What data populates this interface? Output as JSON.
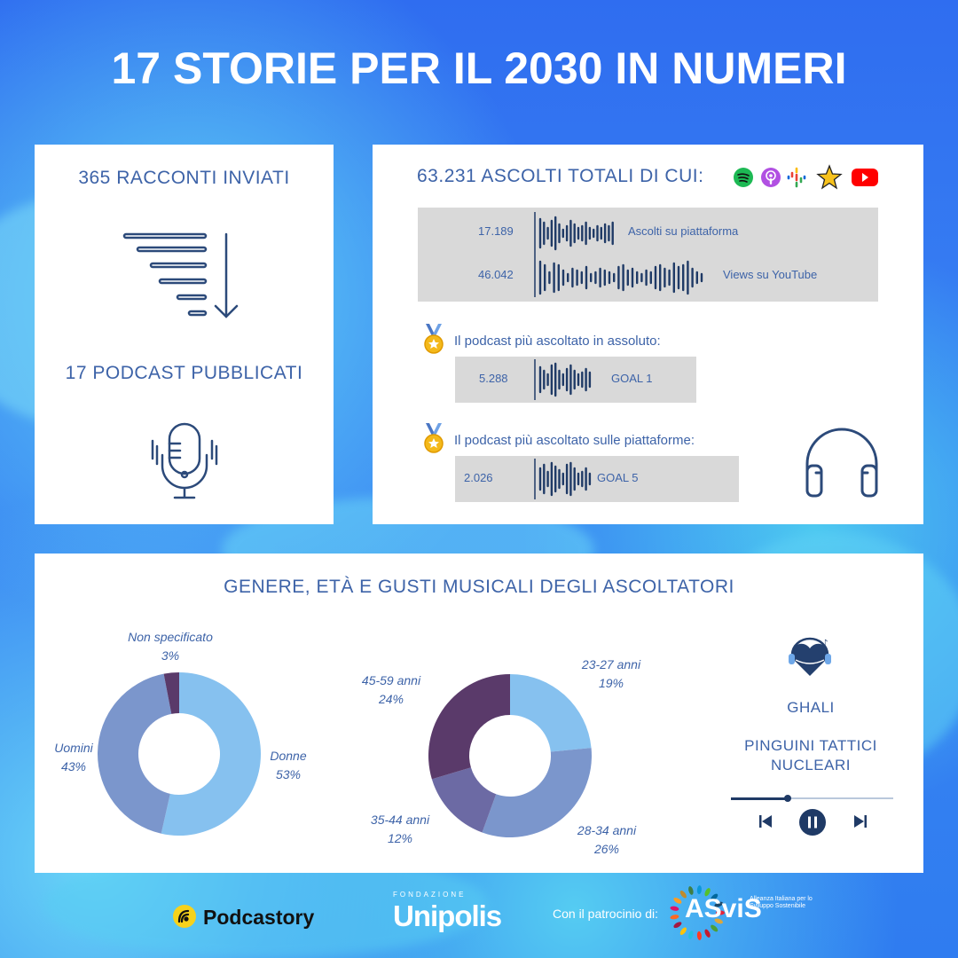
{
  "title": "17 STORIE PER IL 2030 IN NUMERI",
  "left_card": {
    "stories_sent": "365 RACCONTI INVIATI",
    "podcasts_published": "17 PODCAST PUBBLICATI"
  },
  "right_card": {
    "total_heading": "63.231 ASCOLTI TOTALI DI CUI:",
    "platforms": [
      "spotify-icon",
      "apple-podcasts-icon",
      "google-podcasts-icon",
      "star-platform-icon",
      "youtube-icon"
    ],
    "platform": {
      "value": "17.189",
      "label": "Ascolti su piattaforma"
    },
    "youtube": {
      "value": "46.042",
      "label": "Views su YouTube"
    },
    "top_overall": {
      "label": "Il podcast più ascoltato in assoluto:",
      "value": "5.288",
      "goal": "GOAL 1"
    },
    "top_platforms": {
      "label": "Il podcast più ascoltato sulle piattaforme:",
      "value": "2.026",
      "goal": "GOAL 5"
    }
  },
  "audience": {
    "heading": "GENERE, ETÀ E GUSTI MUSICALI DEGLI ASCOLTATORI"
  },
  "chart_data": [
    {
      "type": "pie",
      "categories": [
        "Donne",
        "Uomini",
        "Non specificato"
      ],
      "values": [
        53,
        43,
        3
      ],
      "colors": [
        "#86c1ef",
        "#7b96cc",
        "#5a3a6a"
      ],
      "labels": [
        {
          "name": "Donne",
          "pct": "53%"
        },
        {
          "name": "Uomini",
          "pct": "43%"
        },
        {
          "name": "Non specificato",
          "pct": "3%"
        }
      ]
    },
    {
      "type": "pie",
      "categories": [
        "23-27 anni",
        "28-34 anni",
        "35-44 anni",
        "45-59 anni"
      ],
      "values": [
        19,
        26,
        12,
        24
      ],
      "colors": [
        "#86c1ef",
        "#7b96cc",
        "#6c6aa4",
        "#5a3a6a"
      ],
      "labels": [
        {
          "name": "23-27 anni",
          "pct": "19%"
        },
        {
          "name": "28-34 anni",
          "pct": "26%"
        },
        {
          "name": "35-44 anni",
          "pct": "12%"
        },
        {
          "name": "45-59 anni",
          "pct": "24%"
        }
      ]
    }
  ],
  "music": {
    "artists": [
      "GHALI",
      "PINGUINI TATTICI NUCLEARI"
    ],
    "progress": 0.35
  },
  "footer": {
    "podcastory": "Podcastory",
    "fondazione": "FONDAZIONE",
    "unipolis": "Unipolis",
    "patronage": "Con il patrocinio di:",
    "asvis": "ASviS",
    "asvis_tagline": "Alleanza Italiana per lo Sviluppo Sostenibile"
  },
  "colors": {
    "accent": "#3d63a8",
    "dark": "#1f3a66",
    "panel": "#d9d9d9"
  }
}
